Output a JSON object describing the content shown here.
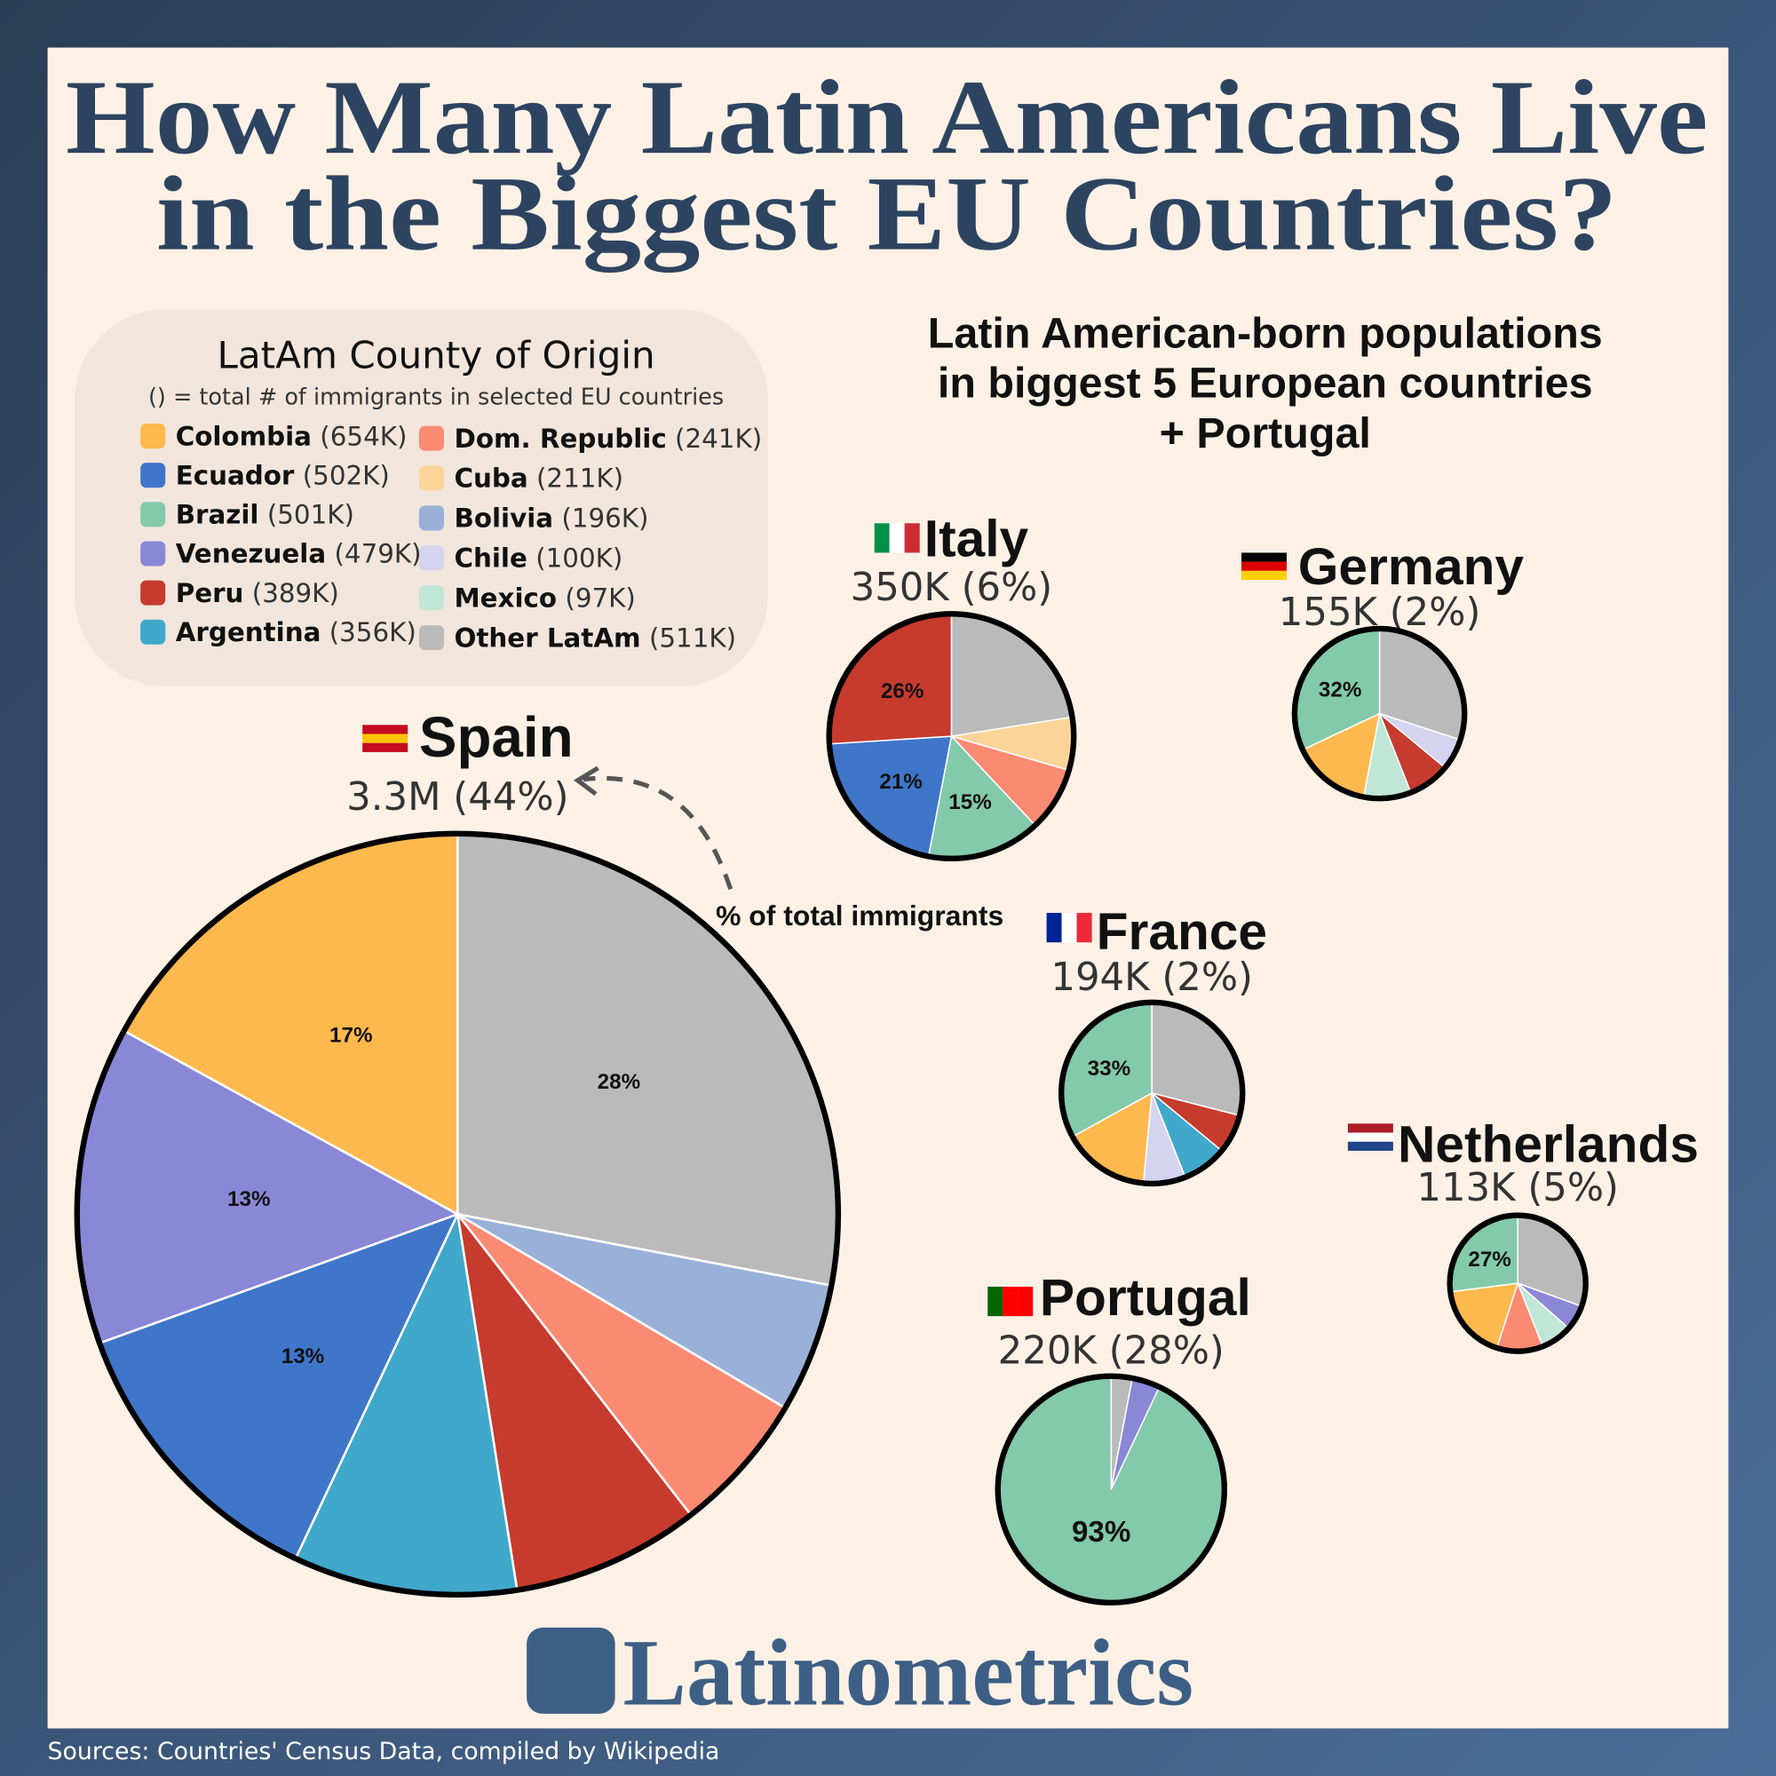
{
  "title": [
    "How Many Latin Americans Live",
    "in the Biggest EU Countries?"
  ],
  "subtitle": [
    "Latin American-born populations",
    "in biggest 5 European countries",
    "+ Portugal"
  ],
  "legend": {
    "title": "LatAm County of Origin",
    "note": "() = total # of immigrants in selected EU countries",
    "items": [
      {
        "name": "Colombia",
        "total": "(654K)",
        "color": "#fdb94d"
      },
      {
        "name": "Ecuador",
        "total": "(502K)",
        "color": "#3f76c9"
      },
      {
        "name": "Brazil",
        "total": "(501K)",
        "color": "#83c9ab"
      },
      {
        "name": "Venezuela",
        "total": "(479K)",
        "color": "#8a87d7"
      },
      {
        "name": "Peru",
        "total": "(389K)",
        "color": "#c63b2e"
      },
      {
        "name": "Argentina",
        "total": "(356K)",
        "color": "#40a8cb"
      },
      {
        "name": "Dom. Republic",
        "total": "(241K)",
        "color": "#fb8a72"
      },
      {
        "name": "Cuba",
        "total": "(211K)",
        "color": "#fcd49a"
      },
      {
        "name": "Bolivia",
        "total": "(196K)",
        "color": "#99b1d8"
      },
      {
        "name": "Chile",
        "total": "(100K)",
        "color": "#d4d3f0"
      },
      {
        "name": "Mexico",
        "total": "(97K)",
        "color": "#c0e6d6"
      },
      {
        "name": "Other LatAm",
        "total": "(511K)",
        "color": "#bababa"
      }
    ]
  },
  "annotation": "% of total immigrants",
  "brand": "Latinometrics",
  "source": "Sources: Countries' Census Data, compiled by Wikipedia",
  "chart_data": [
    {
      "type": "pie",
      "title": "Spain",
      "subtitle": "3.3M (44%)",
      "categories": [
        "Other LatAm",
        "Bolivia",
        "Dom. Republic",
        "Peru",
        "Argentina",
        "Ecuador",
        "Venezuela",
        "Colombia"
      ],
      "colors": [
        "#bababa",
        "#99b1d8",
        "#fb8a72",
        "#c63b2e",
        "#40a8cb",
        "#3f76c9",
        "#8a87d7",
        "#fdb94d"
      ],
      "values": [
        28,
        5.5,
        6,
        8,
        9.5,
        12.5,
        13.5,
        17
      ],
      "value_labels": [
        "28%",
        null,
        null,
        null,
        null,
        "13%",
        "13%",
        "17%"
      ]
    },
    {
      "type": "pie",
      "title": "Italy",
      "subtitle": "350K (6%)",
      "categories": [
        "Other LatAm",
        "Cuba",
        "Dom. Republic",
        "Brazil",
        "Ecuador",
        "Peru"
      ],
      "colors": [
        "#bababa",
        "#fcd49a",
        "#fb8a72",
        "#83c9ab",
        "#3f76c9",
        "#c63b2e"
      ],
      "values": [
        22.5,
        7,
        8.5,
        15,
        21,
        26
      ],
      "value_labels": [
        null,
        null,
        null,
        "15%",
        "21%",
        "26%"
      ]
    },
    {
      "type": "pie",
      "title": "Germany",
      "subtitle": "155K (2%)",
      "categories": [
        "Other LatAm",
        "Chile",
        "Peru",
        "Mexico",
        "Colombia",
        "Brazil"
      ],
      "colors": [
        "#bababa",
        "#d4d3f0",
        "#c63b2e",
        "#c0e6d6",
        "#fdb94d",
        "#83c9ab"
      ],
      "values": [
        30,
        6,
        8,
        9,
        15,
        32
      ],
      "value_labels": [
        null,
        null,
        null,
        null,
        null,
        "32%"
      ]
    },
    {
      "type": "pie",
      "title": "France",
      "subtitle": "194K (2%)",
      "categories": [
        "Other LatAm",
        "Peru",
        "Argentina",
        "Chile",
        "Colombia",
        "Brazil"
      ],
      "colors": [
        "#bababa",
        "#c63b2e",
        "#40a8cb",
        "#d4d3f0",
        "#fdb94d",
        "#83c9ab"
      ],
      "values": [
        29,
        7,
        8,
        7.5,
        15.5,
        33
      ],
      "value_labels": [
        null,
        null,
        null,
        null,
        null,
        "33%"
      ]
    },
    {
      "type": "pie",
      "title": "Netherlands",
      "subtitle": "113K (5%)",
      "categories": [
        "Other LatAm",
        "Venezuela",
        "Mexico",
        "Dom. Republic",
        "Colombia",
        "Brazil"
      ],
      "colors": [
        "#bababa",
        "#8a87d7",
        "#c0e6d6",
        "#fb8a72",
        "#fdb94d",
        "#83c9ab"
      ],
      "values": [
        30.5,
        6,
        7.5,
        11,
        18,
        27
      ],
      "value_labels": [
        null,
        null,
        null,
        null,
        null,
        "27%"
      ]
    },
    {
      "type": "pie",
      "title": "Portugal",
      "subtitle": "220K (28%)",
      "categories": [
        "Other LatAm",
        "Venezuela",
        "Brazil"
      ],
      "colors": [
        "#bababa",
        "#8a87d7",
        "#83c9ab"
      ],
      "values": [
        3,
        4,
        93
      ],
      "value_labels": [
        null,
        null,
        "93%"
      ]
    }
  ]
}
